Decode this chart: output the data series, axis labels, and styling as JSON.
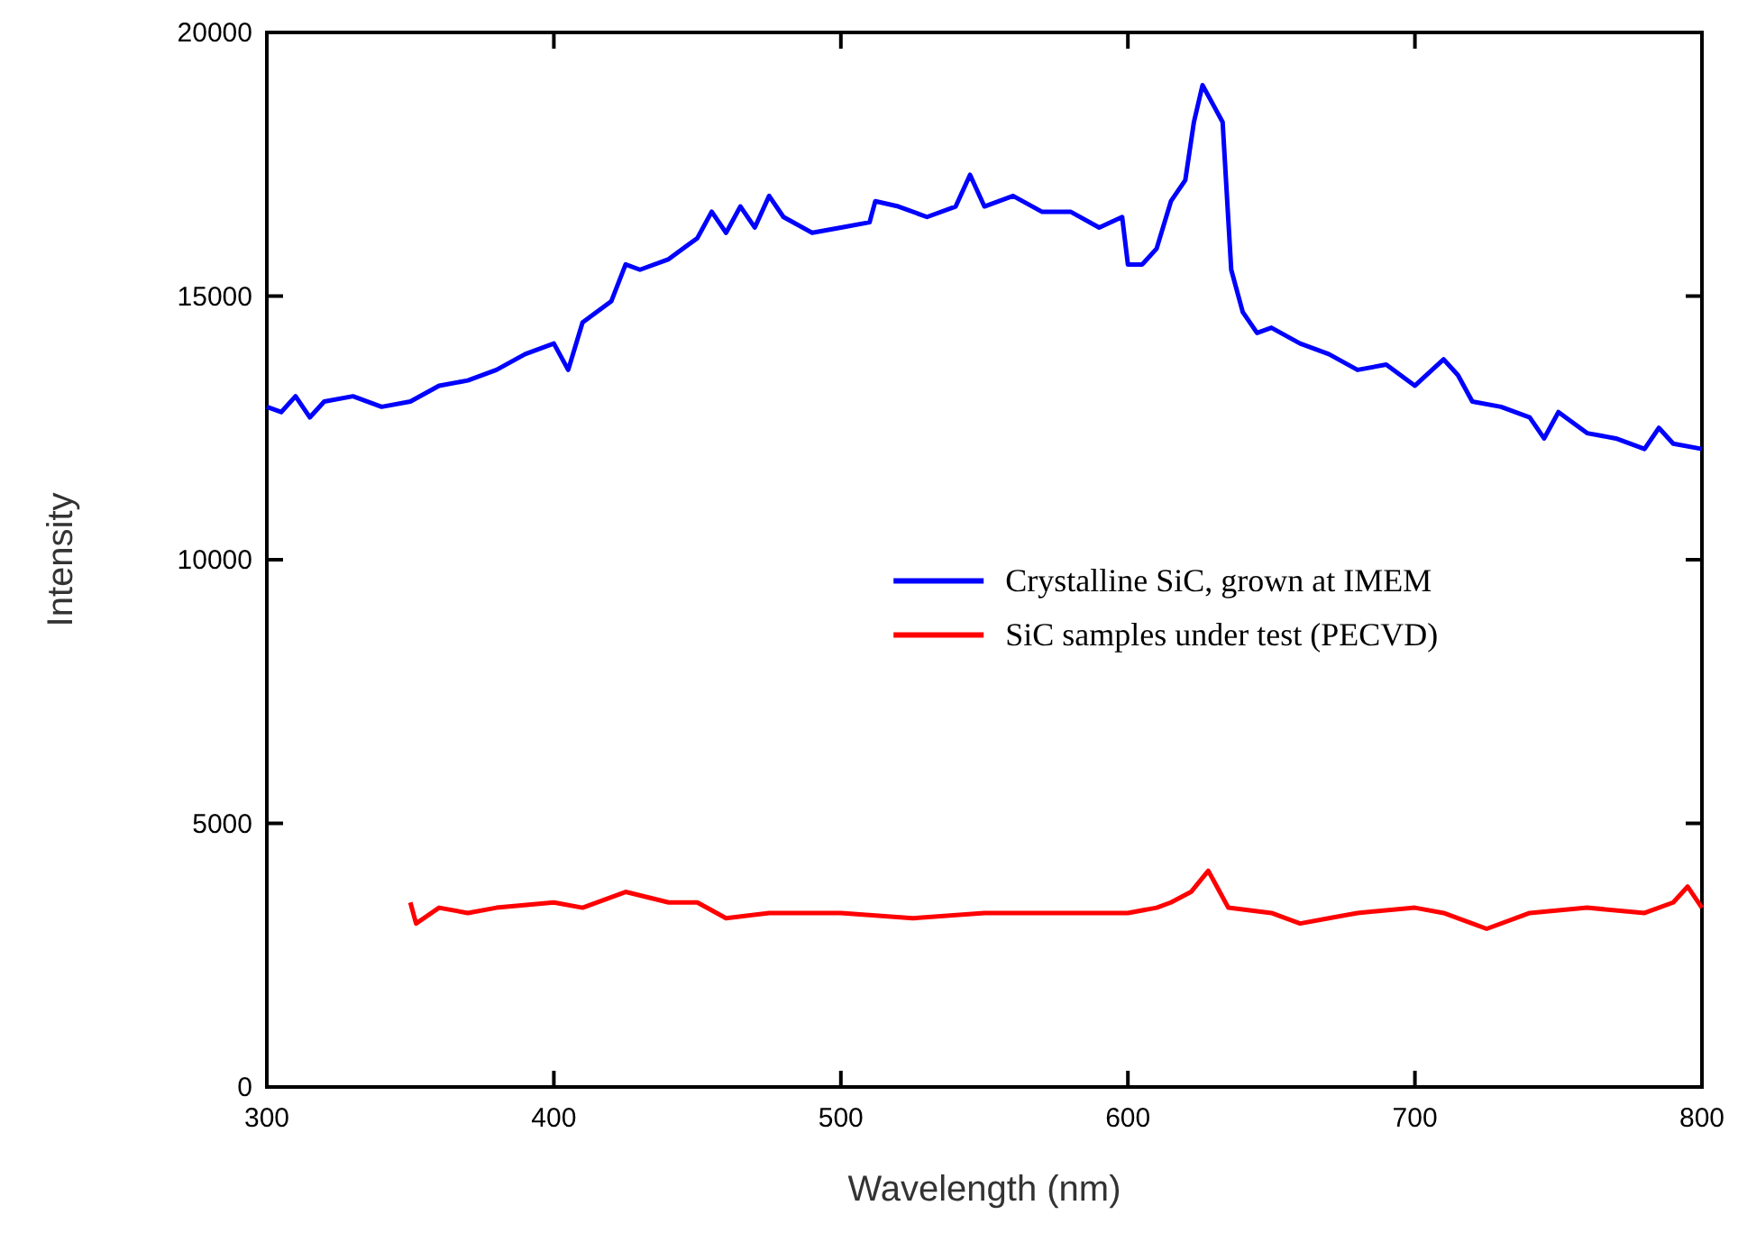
{
  "chart_data": {
    "type": "line",
    "xlabel": "Wavelength (nm)",
    "ylabel": "Intensity",
    "xlim": [
      300,
      800
    ],
    "ylim": [
      0,
      20000
    ],
    "xticks": [
      300,
      400,
      500,
      600,
      700,
      800
    ],
    "yticks": [
      0,
      5000,
      10000,
      15000,
      20000
    ],
    "grid": false,
    "legend": "right",
    "marker": "none",
    "line_style": "solid",
    "series": [
      {
        "name": "Crystalline SiC, grown at IMEM",
        "color": "#0000ff",
        "x": [
          300,
          305,
          310,
          315,
          320,
          330,
          340,
          350,
          360,
          370,
          380,
          390,
          400,
          405,
          410,
          420,
          425,
          430,
          440,
          450,
          455,
          460,
          465,
          470,
          475,
          480,
          490,
          500,
          510,
          512,
          520,
          530,
          540,
          545,
          550,
          560,
          570,
          580,
          590,
          598,
          600,
          605,
          610,
          615,
          620,
          623,
          626,
          630,
          633,
          636,
          640,
          645,
          650,
          660,
          670,
          680,
          690,
          700,
          710,
          715,
          720,
          730,
          740,
          745,
          750,
          760,
          770,
          780,
          785,
          790,
          800
        ],
        "values": [
          12900,
          12800,
          13100,
          12700,
          13000,
          13100,
          12900,
          13000,
          13300,
          13400,
          13600,
          13900,
          14100,
          13600,
          14500,
          14900,
          15600,
          15500,
          15700,
          16100,
          16600,
          16200,
          16700,
          16300,
          16900,
          16500,
          16200,
          16300,
          16400,
          16800,
          16700,
          16500,
          16700,
          17300,
          16700,
          16900,
          16600,
          16600,
          16300,
          16500,
          15600,
          15600,
          15900,
          16800,
          17200,
          18300,
          19000,
          18600,
          18300,
          15500,
          14700,
          14300,
          14400,
          14100,
          13900,
          13600,
          13700,
          13300,
          13800,
          13500,
          13000,
          12900,
          12700,
          12300,
          12800,
          12400,
          12300,
          12100,
          12500,
          12200,
          12100
        ]
      },
      {
        "name": "SiC samples under test (PECVD)",
        "color": "#ff0000",
        "x": [
          350,
          352,
          360,
          370,
          380,
          400,
          410,
          425,
          440,
          450,
          460,
          475,
          500,
          525,
          550,
          575,
          600,
          610,
          615,
          622,
          628,
          632,
          635,
          650,
          660,
          670,
          680,
          700,
          710,
          720,
          725,
          740,
          760,
          780,
          790,
          795,
          800
        ],
        "values": [
          3500,
          3100,
          3400,
          3300,
          3400,
          3500,
          3400,
          3700,
          3500,
          3500,
          3200,
          3300,
          3300,
          3200,
          3300,
          3300,
          3300,
          3400,
          3500,
          3700,
          4100,
          3700,
          3400,
          3300,
          3100,
          3200,
          3300,
          3400,
          3300,
          3100,
          3000,
          3300,
          3400,
          3300,
          3500,
          3800,
          3400
        ]
      }
    ]
  }
}
